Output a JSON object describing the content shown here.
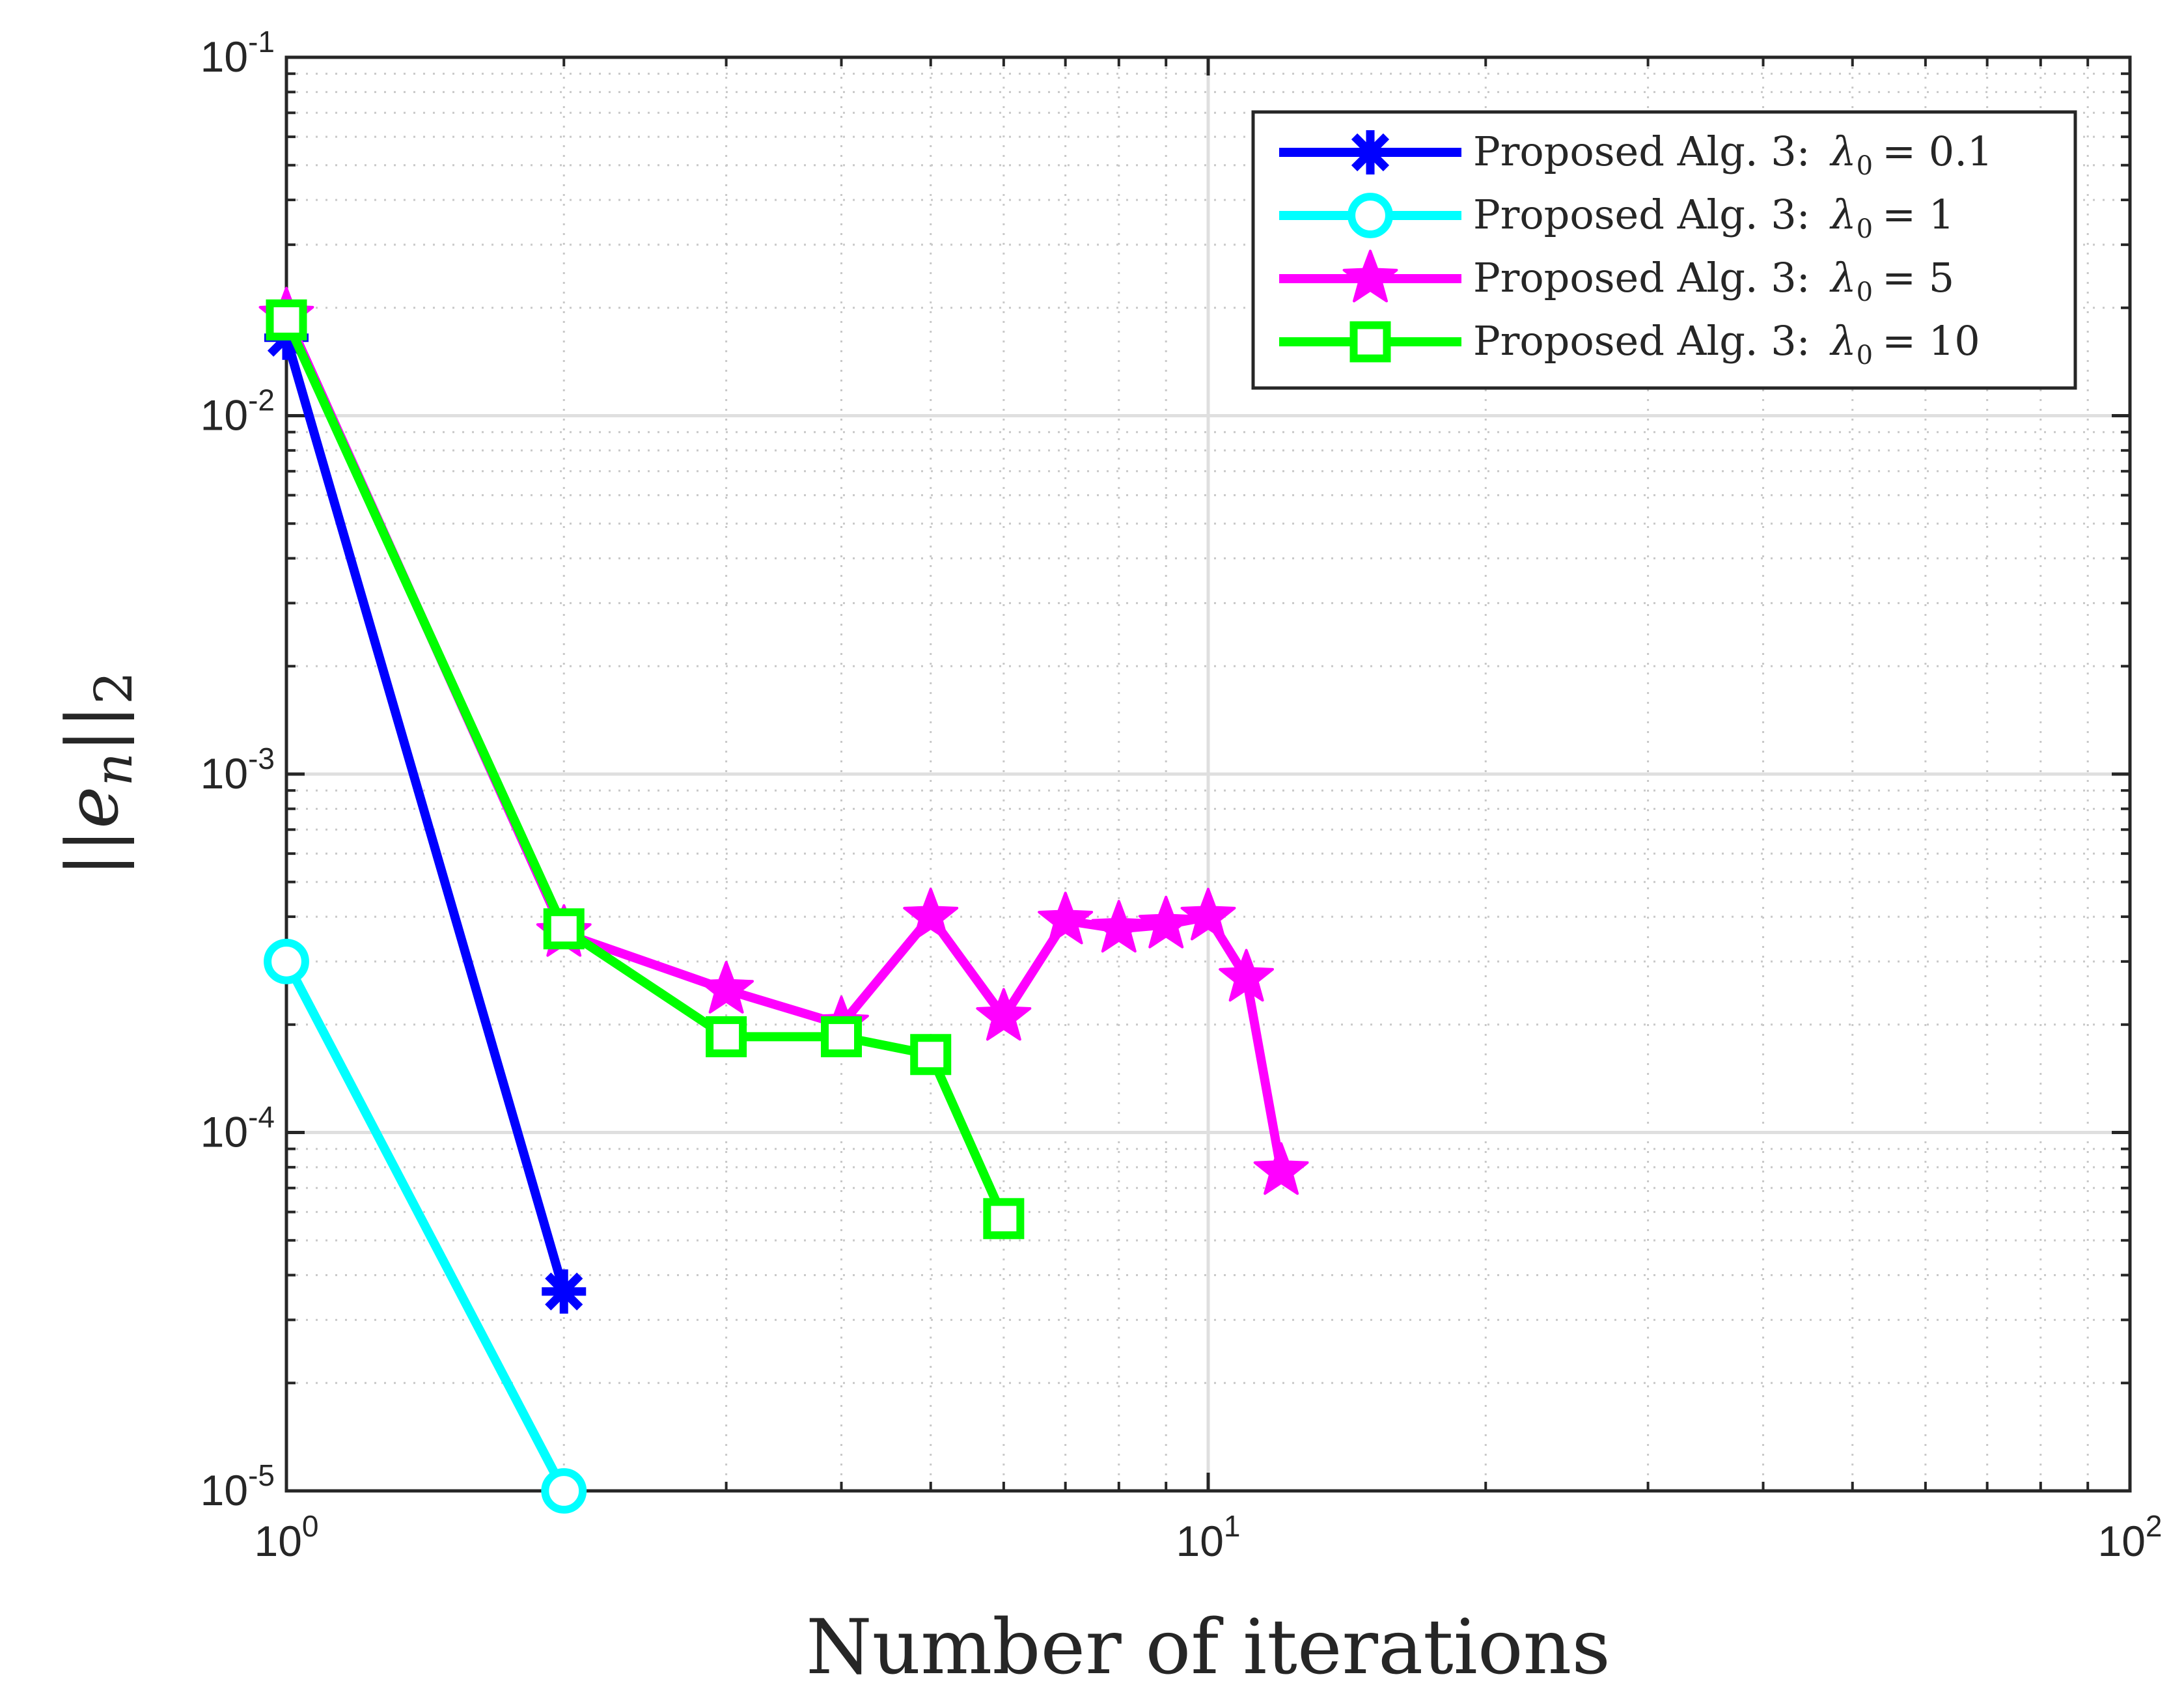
{
  "chart_data": {
    "type": "line",
    "title": "",
    "xlabel": "Number of iterations",
    "ylabel": "||e_n||_2",
    "xscale": "log",
    "yscale": "log",
    "xlim": [
      1,
      100
    ],
    "ylim": [
      1e-05,
      0.1
    ],
    "grid": true,
    "minor_grid": true,
    "legend_position": "top-right",
    "x_ticks": [
      {
        "base": "10",
        "exp": "0",
        "value": 1
      },
      {
        "base": "10",
        "exp": "1",
        "value": 10
      },
      {
        "base": "10",
        "exp": "2",
        "value": 100
      }
    ],
    "y_ticks": [
      {
        "base": "10",
        "exp": "-1",
        "value": 0.1
      },
      {
        "base": "10",
        "exp": "-2",
        "value": 0.01
      },
      {
        "base": "10",
        "exp": "-3",
        "value": 0.001
      },
      {
        "base": "10",
        "exp": "-4",
        "value": 0.0001
      },
      {
        "base": "10",
        "exp": "-5",
        "value": 1e-05
      }
    ],
    "ylabel_parts": {
      "bars_left": "||",
      "var": "e",
      "sub": "n",
      "bars_right": "||",
      "norm_sub": "2"
    },
    "series": [
      {
        "name": "Proposed Alg. 3:  λ0 = 0.1",
        "legend_prefix": "Proposed Alg. 3:",
        "legend_lambda": "λ",
        "legend_lambda_sub": "0",
        "legend_value": "= 0.1",
        "color": "#0000ff",
        "marker": "asterisk",
        "x": [
          1,
          2
        ],
        "y": [
          0.0165,
          3.6e-05
        ]
      },
      {
        "name": "Proposed Alg. 3:  λ0 = 1",
        "legend_prefix": "Proposed Alg. 3:",
        "legend_lambda": "λ",
        "legend_lambda_sub": "0",
        "legend_value": "= 1",
        "color": "#00ffff",
        "marker": "circle",
        "x": [
          1,
          2
        ],
        "y": [
          0.0003,
          1e-05
        ]
      },
      {
        "name": "Proposed Alg. 3:  λ0 = 5",
        "legend_prefix": "Proposed Alg. 3:",
        "legend_lambda": "λ",
        "legend_lambda_sub": "0",
        "legend_value": "= 5",
        "color": "#ff00ff",
        "marker": "pentagram",
        "x": [
          1,
          2,
          3,
          4,
          5,
          6,
          7,
          8,
          9,
          10,
          11,
          12
        ],
        "y": [
          0.019,
          0.00036,
          0.00025,
          0.0002,
          0.0004,
          0.00021,
          0.00039,
          0.00037,
          0.00038,
          0.0004,
          0.00027,
          7.8e-05
        ]
      },
      {
        "name": "Proposed Alg. 3:  λ0 = 10",
        "legend_prefix": "Proposed Alg. 3:",
        "legend_lambda": "λ",
        "legend_lambda_sub": "0",
        "legend_value": "= 10",
        "color": "#00ff00",
        "marker": "square",
        "x": [
          1,
          2,
          3,
          4,
          5,
          6
        ],
        "y": [
          0.0185,
          0.00037,
          0.000185,
          0.000185,
          0.000165,
          5.75e-05
        ]
      }
    ]
  },
  "colors": {
    "axis": "#262626",
    "grid_major": "#dfdfdf",
    "grid_minor": "#c8c8c8",
    "background": "#ffffff",
    "legend_border": "#262626"
  }
}
